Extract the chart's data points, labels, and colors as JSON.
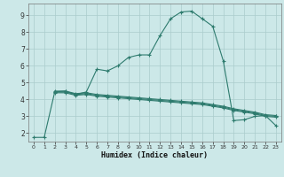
{
  "xlabel": "Humidex (Indice chaleur)",
  "background_color": "#cce8e8",
  "grid_color": "#aacccc",
  "line_color": "#2e7b6e",
  "xlim": [
    -0.5,
    23.5
  ],
  "ylim": [
    1.5,
    9.7
  ],
  "xticks": [
    0,
    1,
    2,
    3,
    4,
    5,
    6,
    7,
    8,
    9,
    10,
    11,
    12,
    13,
    14,
    15,
    16,
    17,
    18,
    19,
    20,
    21,
    22,
    23
  ],
  "yticks": [
    2,
    3,
    4,
    5,
    6,
    7,
    8,
    9
  ],
  "curve1_x": [
    0,
    1,
    2,
    3,
    4,
    5,
    6,
    7,
    8,
    9,
    10,
    11,
    12,
    13,
    14,
    15,
    16,
    17,
    18,
    19,
    20,
    21,
    22,
    23
  ],
  "curve1_y": [
    1.75,
    1.75,
    4.45,
    4.5,
    4.3,
    4.45,
    5.8,
    5.7,
    6.0,
    6.5,
    6.65,
    6.65,
    7.8,
    8.8,
    9.2,
    9.25,
    8.8,
    8.35,
    6.3,
    2.75,
    2.8,
    3.0,
    3.05,
    2.45
  ],
  "curve2_x": [
    2,
    3,
    4,
    5,
    6,
    7,
    8,
    9,
    10,
    11,
    12,
    13,
    14,
    15,
    16,
    17,
    18,
    19,
    20,
    21,
    22,
    23
  ],
  "curve2_y": [
    4.5,
    4.5,
    4.35,
    4.4,
    4.3,
    4.25,
    4.2,
    4.15,
    4.1,
    4.05,
    4.0,
    3.95,
    3.9,
    3.85,
    3.8,
    3.7,
    3.6,
    3.45,
    3.35,
    3.25,
    3.1,
    3.05
  ],
  "curve3_x": [
    2,
    3,
    4,
    5,
    6,
    7,
    8,
    9,
    10,
    11,
    12,
    13,
    14,
    15,
    16,
    17,
    18,
    19,
    20,
    21,
    22,
    23
  ],
  "curve3_y": [
    4.45,
    4.45,
    4.3,
    4.35,
    4.25,
    4.2,
    4.15,
    4.1,
    4.05,
    4.0,
    3.95,
    3.9,
    3.85,
    3.8,
    3.75,
    3.65,
    3.55,
    3.4,
    3.3,
    3.2,
    3.05,
    3.0
  ],
  "curve4_x": [
    2,
    3,
    4,
    5,
    6,
    7,
    8,
    9,
    10,
    11,
    12,
    13,
    14,
    15,
    16,
    17,
    18,
    19,
    20,
    21,
    22,
    23
  ],
  "curve4_y": [
    4.4,
    4.4,
    4.25,
    4.3,
    4.2,
    4.15,
    4.1,
    4.05,
    4.0,
    3.95,
    3.9,
    3.85,
    3.8,
    3.75,
    3.7,
    3.6,
    3.5,
    3.35,
    3.25,
    3.15,
    3.0,
    2.95
  ]
}
